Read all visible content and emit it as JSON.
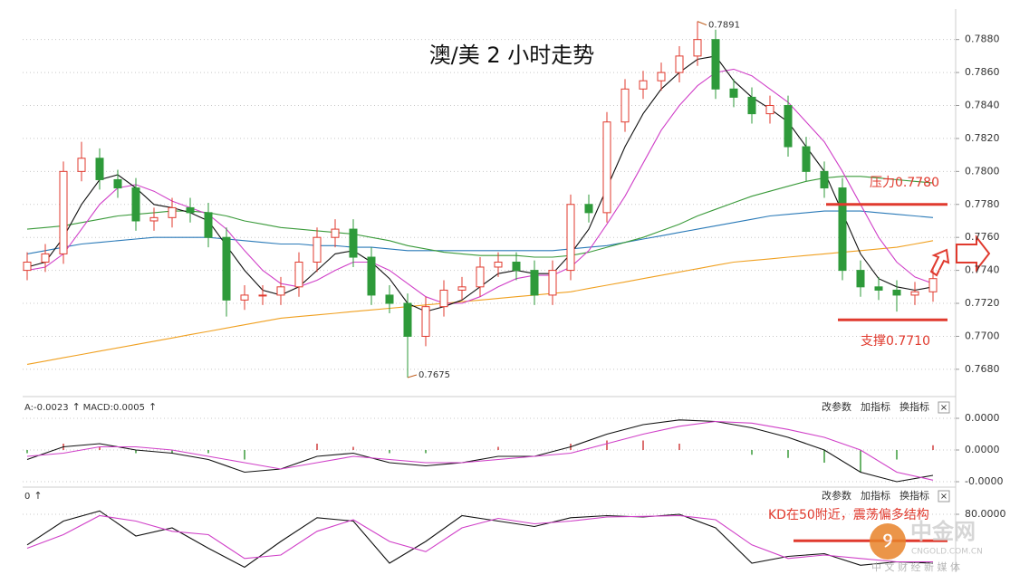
{
  "chart_data": [
    {
      "type": "candlestick",
      "title": "澳/美 2 小时走势",
      "open": [
        0.774,
        0.7745,
        0.775,
        0.78,
        0.7808,
        0.7795,
        0.779,
        0.777,
        0.7772,
        0.7778,
        0.7775,
        0.776,
        0.7722,
        0.7725,
        0.7725,
        0.773,
        0.7745,
        0.776,
        0.7765,
        0.7748,
        0.7725,
        0.772,
        0.77,
        0.7718,
        0.7728,
        0.773,
        0.7742,
        0.7745,
        0.774,
        0.7725,
        0.774,
        0.778,
        0.7775,
        0.783,
        0.785,
        0.7855,
        0.786,
        0.787,
        0.788,
        0.785,
        0.7845,
        0.7835,
        0.784,
        0.7815,
        0.78,
        0.779,
        0.774,
        0.773,
        0.7728,
        0.7725,
        0.7727
      ],
      "high": [
        0.7751,
        0.7756,
        0.7806,
        0.7818,
        0.7814,
        0.7801,
        0.7796,
        0.7778,
        0.7784,
        0.7784,
        0.7781,
        0.7766,
        0.7731,
        0.7731,
        0.7736,
        0.7751,
        0.7766,
        0.7771,
        0.7771,
        0.7754,
        0.7731,
        0.7726,
        0.7724,
        0.7734,
        0.7736,
        0.7748,
        0.7751,
        0.7751,
        0.7746,
        0.7746,
        0.7786,
        0.7786,
        0.7836,
        0.7856,
        0.7861,
        0.7866,
        0.7876,
        0.7891,
        0.7886,
        0.7856,
        0.7851,
        0.7846,
        0.7846,
        0.7821,
        0.7806,
        0.7796,
        0.7746,
        0.7736,
        0.7734,
        0.7733,
        0.7741
      ],
      "low": [
        0.7734,
        0.7739,
        0.7744,
        0.7794,
        0.7789,
        0.7784,
        0.7764,
        0.7764,
        0.7766,
        0.7769,
        0.7754,
        0.7712,
        0.7716,
        0.7719,
        0.7719,
        0.7724,
        0.7739,
        0.7754,
        0.7742,
        0.7719,
        0.7714,
        0.7675,
        0.7694,
        0.7712,
        0.7722,
        0.7724,
        0.7736,
        0.7734,
        0.7719,
        0.7719,
        0.7734,
        0.7769,
        0.7769,
        0.7824,
        0.7844,
        0.7849,
        0.7854,
        0.7864,
        0.7844,
        0.7839,
        0.7829,
        0.7829,
        0.7809,
        0.7794,
        0.7784,
        0.7734,
        0.7724,
        0.7722,
        0.7715,
        0.7719,
        0.7721
      ],
      "close": [
        0.7745,
        0.775,
        0.78,
        0.7808,
        0.7795,
        0.779,
        0.777,
        0.7772,
        0.7778,
        0.7775,
        0.776,
        0.7722,
        0.7725,
        0.7725,
        0.773,
        0.7745,
        0.776,
        0.7765,
        0.7748,
        0.7725,
        0.772,
        0.77,
        0.7718,
        0.7728,
        0.773,
        0.7742,
        0.7745,
        0.774,
        0.7725,
        0.774,
        0.778,
        0.7775,
        0.783,
        0.785,
        0.7855,
        0.786,
        0.787,
        0.788,
        0.785,
        0.7845,
        0.7835,
        0.784,
        0.7815,
        0.78,
        0.779,
        0.774,
        0.773,
        0.7728,
        0.7725,
        0.7727,
        0.7735
      ],
      "up_color": "#e03a2e",
      "down_color": "#2e9a3a",
      "lines": [
        {
          "color": "#f0a020",
          "values": [
            0.7683,
            0.7685,
            0.7687,
            0.7689,
            0.7691,
            0.7693,
            0.7695,
            0.7697,
            0.7699,
            0.7701,
            0.7703,
            0.7705,
            0.7707,
            0.7709,
            0.7711,
            0.7712,
            0.7713,
            0.7714,
            0.7715,
            0.7716,
            0.7717,
            0.7718,
            0.7719,
            0.772,
            0.7721,
            0.7722,
            0.7723,
            0.7724,
            0.7725,
            0.7726,
            0.7727,
            0.7729,
            0.7731,
            0.7733,
            0.7735,
            0.7737,
            0.7739,
            0.7741,
            0.7743,
            0.7745,
            0.7746,
            0.7747,
            0.7748,
            0.7749,
            0.775,
            0.7751,
            0.7752,
            0.7753,
            0.7754,
            0.7756,
            0.7758
          ]
        },
        {
          "color": "#2a7ab8",
          "values": [
            0.775,
            0.7752,
            0.7754,
            0.7756,
            0.7757,
            0.7758,
            0.7759,
            0.776,
            0.776,
            0.776,
            0.776,
            0.7759,
            0.7758,
            0.7757,
            0.7756,
            0.7756,
            0.7755,
            0.7755,
            0.7754,
            0.7754,
            0.7753,
            0.7752,
            0.7752,
            0.7752,
            0.7752,
            0.7752,
            0.7752,
            0.7752,
            0.7752,
            0.7752,
            0.7753,
            0.7754,
            0.7755,
            0.7757,
            0.7759,
            0.7761,
            0.7763,
            0.7765,
            0.7767,
            0.7769,
            0.7771,
            0.7773,
            0.7774,
            0.7775,
            0.7776,
            0.7776,
            0.7776,
            0.7775,
            0.7774,
            0.7773,
            0.7772
          ]
        },
        {
          "color": "#3a9a3a",
          "values": [
            0.7765,
            0.7766,
            0.7767,
            0.7769,
            0.7771,
            0.7773,
            0.7774,
            0.7775,
            0.7776,
            0.7776,
            0.7775,
            0.7773,
            0.777,
            0.7768,
            0.7766,
            0.7765,
            0.7764,
            0.7763,
            0.7762,
            0.776,
            0.7758,
            0.7755,
            0.7753,
            0.7751,
            0.775,
            0.7749,
            0.7749,
            0.7749,
            0.7748,
            0.7748,
            0.7749,
            0.7751,
            0.7754,
            0.7757,
            0.776,
            0.7764,
            0.7768,
            0.7773,
            0.7777,
            0.7781,
            0.7785,
            0.7788,
            0.7791,
            0.7794,
            0.7796,
            0.7797,
            0.7797,
            0.7796,
            0.7795,
            0.7794,
            0.7793
          ]
        },
        {
          "color": "#d040c8",
          "values": [
            0.774,
            0.7742,
            0.775,
            0.7765,
            0.778,
            0.779,
            0.7792,
            0.7788,
            0.7782,
            0.7778,
            0.7774,
            0.7765,
            0.7752,
            0.774,
            0.7732,
            0.773,
            0.7734,
            0.774,
            0.7745,
            0.7745,
            0.774,
            0.7732,
            0.7724,
            0.772,
            0.772,
            0.7724,
            0.773,
            0.7735,
            0.7737,
            0.7737,
            0.7742,
            0.7752,
            0.7768,
            0.7785,
            0.7805,
            0.7825,
            0.784,
            0.7852,
            0.786,
            0.7862,
            0.7858,
            0.785,
            0.7842,
            0.783,
            0.7818,
            0.78,
            0.778,
            0.776,
            0.7745,
            0.7736,
            0.7732
          ]
        },
        {
          "color": "#111111",
          "values": [
            0.7742,
            0.7745,
            0.776,
            0.778,
            0.7795,
            0.7798,
            0.779,
            0.778,
            0.7778,
            0.7775,
            0.777,
            0.7755,
            0.774,
            0.7728,
            0.7725,
            0.773,
            0.774,
            0.775,
            0.7752,
            0.7745,
            0.7735,
            0.772,
            0.7715,
            0.7718,
            0.7722,
            0.773,
            0.7738,
            0.774,
            0.7738,
            0.7738,
            0.775,
            0.7765,
            0.779,
            0.7815,
            0.7835,
            0.785,
            0.786,
            0.7868,
            0.787,
            0.7855,
            0.7845,
            0.7838,
            0.783,
            0.7815,
            0.78,
            0.7775,
            0.775,
            0.7735,
            0.773,
            0.7728,
            0.773
          ]
        }
      ],
      "ylim": [
        0.7664,
        0.7893
      ],
      "yticks": [
        {
          "value": 0.768,
          "label": "0.7680"
        },
        {
          "value": 0.77,
          "label": "0.7700"
        },
        {
          "value": 0.772,
          "label": "0.7720"
        },
        {
          "value": 0.774,
          "label": "0.7740"
        },
        {
          "value": 0.776,
          "label": "0.7760"
        },
        {
          "value": 0.778,
          "label": "0.7780"
        },
        {
          "value": 0.78,
          "label": "0.7800"
        },
        {
          "value": 0.782,
          "label": "0.7820"
        },
        {
          "value": 0.784,
          "label": "0.7840"
        },
        {
          "value": 0.786,
          "label": "0.7860"
        },
        {
          "value": 0.788,
          "label": "0.7880"
        }
      ],
      "grid": true,
      "annotations": [
        {
          "text": "0.7891",
          "value": 0.7891
        },
        {
          "text": "0.7675",
          "value": 0.7675
        },
        {
          "text": "压力0.7780",
          "value": 0.778,
          "color": "#e03a2e"
        },
        {
          "text": "支撑0.7710",
          "value": 0.771,
          "color": "#e03a2e"
        }
      ]
    },
    {
      "type": "macd",
      "legend_texts": [
        "A:-0.0023",
        "MACD:0.0005"
      ],
      "buttons": [
        "改参数",
        "加指标",
        "换指标"
      ],
      "series": [
        {
          "color": "#111111",
          "values": [
            -1.2e-05,
            4e-06,
            8e-06,
            0,
            -4e-06,
            -1.2e-05,
            -2.8e-05,
            -2.4e-05,
            -8e-06,
            -4e-06,
            -1.6e-05,
            -2e-05,
            -1.6e-05,
            -8e-06,
            -8e-06,
            4e-06,
            2e-05,
            3.2e-05,
            3.8e-05,
            3.6e-05,
            2.8e-05,
            1.6e-05,
            0,
            -2.8e-05,
            -4e-05,
            -3.2e-05
          ]
        },
        {
          "color": "#d040c8",
          "values": [
            -8e-06,
            -4e-06,
            4e-06,
            4e-06,
            0,
            -8e-06,
            -1.6e-05,
            -2.4e-05,
            -1.6e-05,
            -8e-06,
            -1.2e-05,
            -1.6e-05,
            -1.6e-05,
            -1.2e-05,
            -8e-06,
            -4e-06,
            8e-06,
            2e-05,
            3e-05,
            3.6e-05,
            3.4e-05,
            2.6e-05,
            1.6e-05,
            0,
            -2.8e-05,
            -3.8e-05
          ]
        }
      ],
      "bars": [
        -4e-06,
        8e-06,
        4e-06,
        -4e-06,
        -4e-06,
        -4e-06,
        -1.2e-05,
        0,
        8e-06,
        4e-06,
        -4e-06,
        -4e-06,
        0,
        4e-06,
        0,
        8e-06,
        1.2e-05,
        1.2e-05,
        8e-06,
        0,
        -6e-06,
        -1e-05,
        -1.6e-05,
        -2.8e-05,
        -1.2e-05,
        6e-06
      ],
      "up_color": "#d04040",
      "down_color": "#3a9a3a",
      "ylim": [
        -4.34e-05,
        4.8e-05
      ],
      "yticks": [
        {
          "value": 4e-05,
          "label": "0.0000"
        },
        {
          "value": 0,
          "label": "0.0000"
        },
        {
          "value": -4e-05,
          "label": "-0.0000"
        }
      ],
      "grid": true
    },
    {
      "type": "kd",
      "legend_texts": [
        "0"
      ],
      "buttons": [
        "改参数",
        "加指标",
        "换指标"
      ],
      "series": [
        {
          "color": "#111111",
          "values": [
            35,
            70,
            85,
            48,
            60,
            30,
            2,
            40,
            75,
            70,
            8,
            40,
            78,
            70,
            62,
            75,
            78,
            76,
            80,
            60,
            8,
            18,
            22,
            5,
            10,
            8
          ]
        },
        {
          "color": "#d040c8",
          "values": [
            30,
            50,
            78,
            70,
            55,
            50,
            15,
            20,
            55,
            72,
            40,
            25,
            60,
            74,
            66,
            70,
            76,
            77,
            78,
            72,
            35,
            15,
            20,
            15,
            10,
            10
          ]
        }
      ],
      "ylim": [
        0,
        100
      ],
      "yticks": [
        {
          "value": 80,
          "label": "80.0000"
        }
      ],
      "grid": true,
      "annotation": {
        "text": "KD在50附近，震荡偏多结构",
        "value": 41,
        "color": "#e03a2e"
      }
    }
  ],
  "watermark": {
    "name": "中金网",
    "domain": "CNGOLD.COM.CN",
    "slogan": "中 文 财 经 新 媒 体"
  }
}
